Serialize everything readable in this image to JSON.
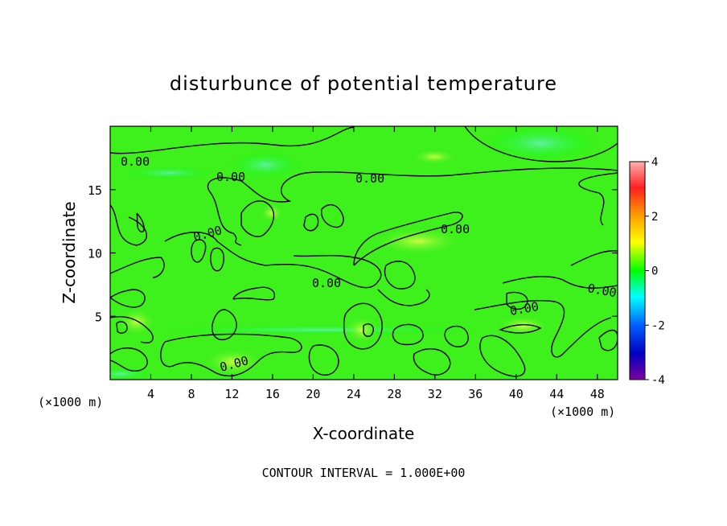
{
  "chart_data": {
    "type": "heatmap",
    "title": "disturbunce of potential temperature",
    "xlabel": "X-coordinate",
    "ylabel": "Z-coordinate",
    "x_unit": "(×1000 m)",
    "y_unit": "(×1000 m)",
    "xlim": [
      0,
      50
    ],
    "ylim": [
      0,
      20
    ],
    "x_ticks": [
      4,
      8,
      12,
      16,
      20,
      24,
      28,
      32,
      36,
      40,
      44,
      48
    ],
    "y_ticks": [
      5,
      10,
      15
    ],
    "colorbar": {
      "min": -4,
      "max": 4,
      "ticks": [
        4,
        2,
        0,
        -2,
        -4
      ],
      "colors": [
        "#ff9a9a",
        "#ff2020",
        "#ffa000",
        "#ffff00",
        "#00ff00",
        "#00ffff",
        "#0060ff",
        "#0000c0",
        "#8000a0"
      ]
    },
    "contour_labels": [
      "0.00",
      "0.00",
      "0.00",
      "0.00",
      "0.00",
      "0.00",
      "0.00",
      "0.00",
      "0.00"
    ],
    "contour_interval_text": "CONTOUR INTERVAL = 1.000E+00",
    "notes": "field is near zero everywhere (mostly 0 to +0.8), with contours at 0.00"
  }
}
